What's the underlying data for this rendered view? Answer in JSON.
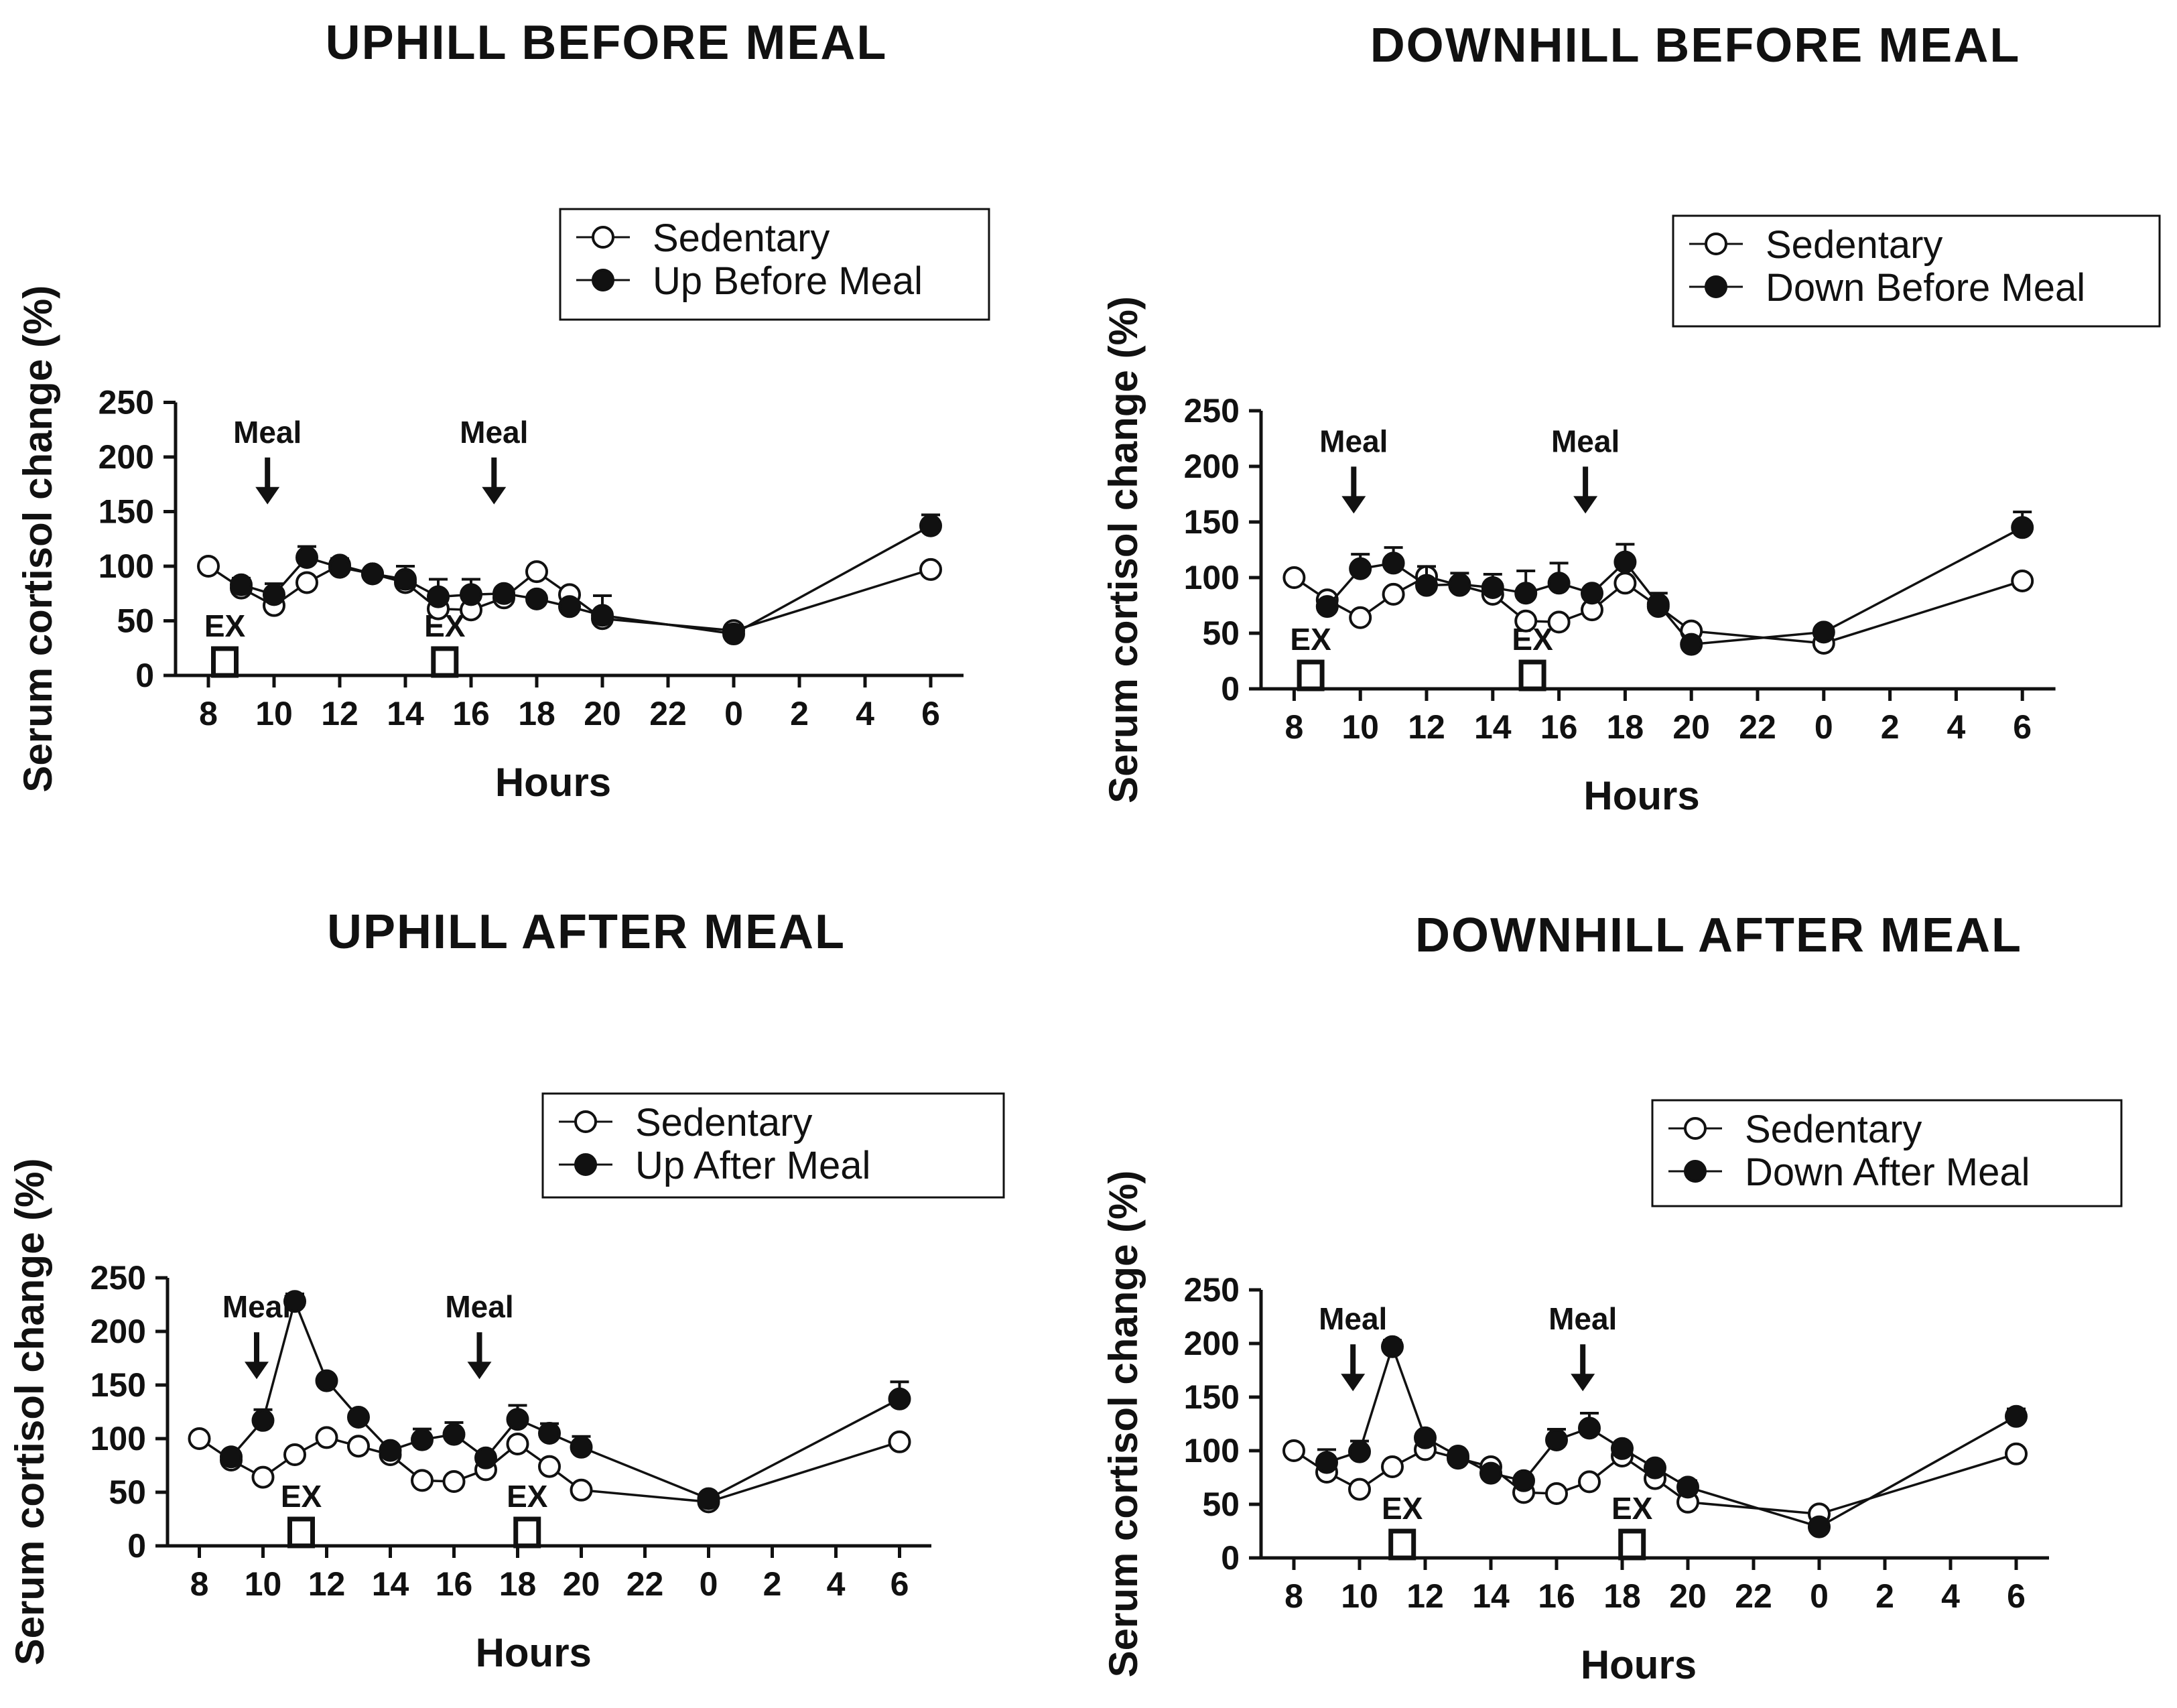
{
  "chart_data": [
    {
      "type": "line",
      "title": "UPHILL BEFORE MEAL",
      "xlabel": "Hours",
      "ylabel": "Serum cortisol change (%)",
      "ylim": [
        0,
        250
      ],
      "yticks": [
        "0",
        "50",
        "100",
        "150",
        "200",
        "250"
      ],
      "xticks": [
        "8",
        "10",
        "12",
        "14",
        "16",
        "18",
        "20",
        "22",
        "0",
        "2",
        "4",
        "6"
      ],
      "legend_position": "top-right",
      "annotations": {
        "meal_label": "Meal",
        "meal_times": [
          9.8,
          16.7
        ],
        "ex_label": "EX",
        "ex_times": [
          8.5,
          15.2
        ]
      },
      "series": [
        {
          "name": "Sedentary",
          "marker": "open-circle",
          "x": [
            8,
            9,
            10,
            11,
            12,
            13,
            14,
            15,
            16,
            17,
            18,
            19,
            20,
            24,
            30
          ],
          "y": [
            100,
            80,
            64,
            85,
            101,
            93,
            85,
            61,
            60,
            71,
            95,
            74,
            52,
            41,
            97
          ],
          "err": [
            0,
            0,
            0,
            0,
            0,
            0,
            0,
            0,
            0,
            0,
            0,
            0,
            0,
            0,
            0
          ]
        },
        {
          "name": "Up Before Meal",
          "marker": "filled-circle",
          "x": [
            9,
            10,
            11,
            12,
            13,
            14,
            15,
            16,
            17,
            18,
            19,
            20,
            24,
            30
          ],
          "y": [
            83,
            74,
            108,
            99,
            93,
            88,
            72,
            74,
            75,
            70,
            63,
            55,
            38,
            137
          ],
          "err": [
            6,
            10,
            10,
            8,
            0,
            12,
            16,
            14,
            5,
            5,
            5,
            18,
            8,
            10
          ]
        }
      ]
    },
    {
      "type": "line",
      "title": "DOWNHILL BEFORE MEAL",
      "xlabel": "Hours",
      "ylabel": "Serum cortisol change (%)",
      "ylim": [
        0,
        250
      ],
      "yticks": [
        "0",
        "50",
        "100",
        "150",
        "200",
        "250"
      ],
      "xticks": [
        "8",
        "10",
        "12",
        "14",
        "16",
        "18",
        "20",
        "22",
        "0",
        "2",
        "4",
        "6"
      ],
      "legend_position": "top-right",
      "annotations": {
        "meal_label": "Meal",
        "meal_times": [
          9.8,
          16.8
        ],
        "ex_label": "EX",
        "ex_times": [
          8.5,
          15.2
        ]
      },
      "series": [
        {
          "name": "Sedentary",
          "marker": "open-circle",
          "x": [
            8,
            9,
            10,
            11,
            12,
            13,
            14,
            15,
            16,
            17,
            18,
            19,
            20,
            24,
            30
          ],
          "y": [
            100,
            80,
            64,
            85,
            101,
            93,
            85,
            61,
            60,
            71,
            95,
            74,
            52,
            41,
            97
          ],
          "err": [
            0,
            0,
            0,
            0,
            0,
            0,
            0,
            0,
            0,
            0,
            0,
            0,
            0,
            0,
            0
          ]
        },
        {
          "name": "Down Before Meal",
          "marker": "filled-circle",
          "x": [
            9,
            10,
            11,
            12,
            13,
            14,
            15,
            16,
            17,
            18,
            19,
            20,
            24,
            30
          ],
          "y": [
            74,
            108,
            113,
            93,
            94,
            91,
            86,
            95,
            86,
            114,
            76,
            40,
            51,
            145
          ],
          "err": [
            0,
            13,
            14,
            17,
            10,
            12,
            20,
            18,
            0,
            16,
            10,
            0,
            0,
            14
          ]
        }
      ]
    },
    {
      "type": "line",
      "title": "UPHILL AFTER MEAL",
      "xlabel": "Hours",
      "ylabel": "Serum cortisol change (%)",
      "ylim": [
        0,
        250
      ],
      "yticks": [
        "0",
        "50",
        "100",
        "150",
        "200",
        "250"
      ],
      "xticks": [
        "8",
        "10",
        "12",
        "14",
        "16",
        "18",
        "20",
        "22",
        "0",
        "2",
        "4",
        "6"
      ],
      "legend_position": "top-right",
      "annotations": {
        "meal_label": "Meal",
        "meal_times": [
          9.8,
          16.8
        ],
        "ex_label": "EX",
        "ex_times": [
          11.2,
          18.3
        ]
      },
      "series": [
        {
          "name": "Sedentary",
          "marker": "open-circle",
          "x": [
            8,
            9,
            10,
            11,
            12,
            13,
            14,
            15,
            16,
            17,
            18,
            19,
            20,
            24,
            30
          ],
          "y": [
            100,
            80,
            64,
            85,
            101,
            93,
            85,
            61,
            60,
            71,
            95,
            74,
            52,
            41,
            97
          ],
          "err": [
            0,
            0,
            0,
            0,
            0,
            0,
            0,
            0,
            0,
            0,
            0,
            0,
            0,
            0,
            0
          ]
        },
        {
          "name": "Up After Meal",
          "marker": "filled-circle",
          "x": [
            9,
            10,
            11,
            12,
            13,
            14,
            15,
            16,
            17,
            18,
            19,
            20,
            24,
            30
          ],
          "y": [
            83,
            117,
            228,
            154,
            120,
            89,
            99,
            104,
            82,
            118,
            105,
            92,
            44,
            137
          ],
          "err": [
            0,
            10,
            7,
            0,
            0,
            0,
            10,
            11,
            0,
            13,
            9,
            10,
            0,
            16
          ]
        }
      ]
    },
    {
      "type": "line",
      "title": "DOWNHILL AFTER MEAL",
      "xlabel": "Hours",
      "ylabel": "Serum cortisol change (%)",
      "ylim": [
        0,
        250
      ],
      "yticks": [
        "0",
        "50",
        "100",
        "150",
        "200",
        "250"
      ],
      "xticks": [
        "8",
        "10",
        "12",
        "14",
        "16",
        "18",
        "20",
        "22",
        "0",
        "2",
        "4",
        "6"
      ],
      "legend_position": "top-right",
      "annotations": {
        "meal_label": "Meal",
        "meal_times": [
          9.8,
          16.8
        ],
        "ex_label": "EX",
        "ex_times": [
          11.3,
          18.3
        ]
      },
      "series": [
        {
          "name": "Sedentary",
          "marker": "open-circle",
          "x": [
            8,
            9,
            10,
            11,
            12,
            13,
            14,
            15,
            16,
            17,
            18,
            19,
            20,
            24,
            30
          ],
          "y": [
            100,
            80,
            64,
            85,
            101,
            93,
            85,
            61,
            60,
            71,
            95,
            74,
            52,
            41,
            97
          ],
          "err": [
            0,
            0,
            0,
            0,
            0,
            0,
            0,
            0,
            0,
            0,
            0,
            0,
            0,
            0,
            0
          ]
        },
        {
          "name": "Down After Meal",
          "marker": "filled-circle",
          "x": [
            9,
            10,
            11,
            12,
            13,
            14,
            15,
            16,
            17,
            18,
            19,
            20,
            24,
            30
          ],
          "y": [
            89,
            99,
            197,
            112,
            95,
            79,
            72,
            110,
            121,
            102,
            84,
            66,
            29,
            132
          ],
          "err": [
            12,
            10,
            6,
            0,
            0,
            0,
            0,
            10,
            14,
            0,
            0,
            6,
            0,
            7
          ]
        }
      ]
    }
  ]
}
